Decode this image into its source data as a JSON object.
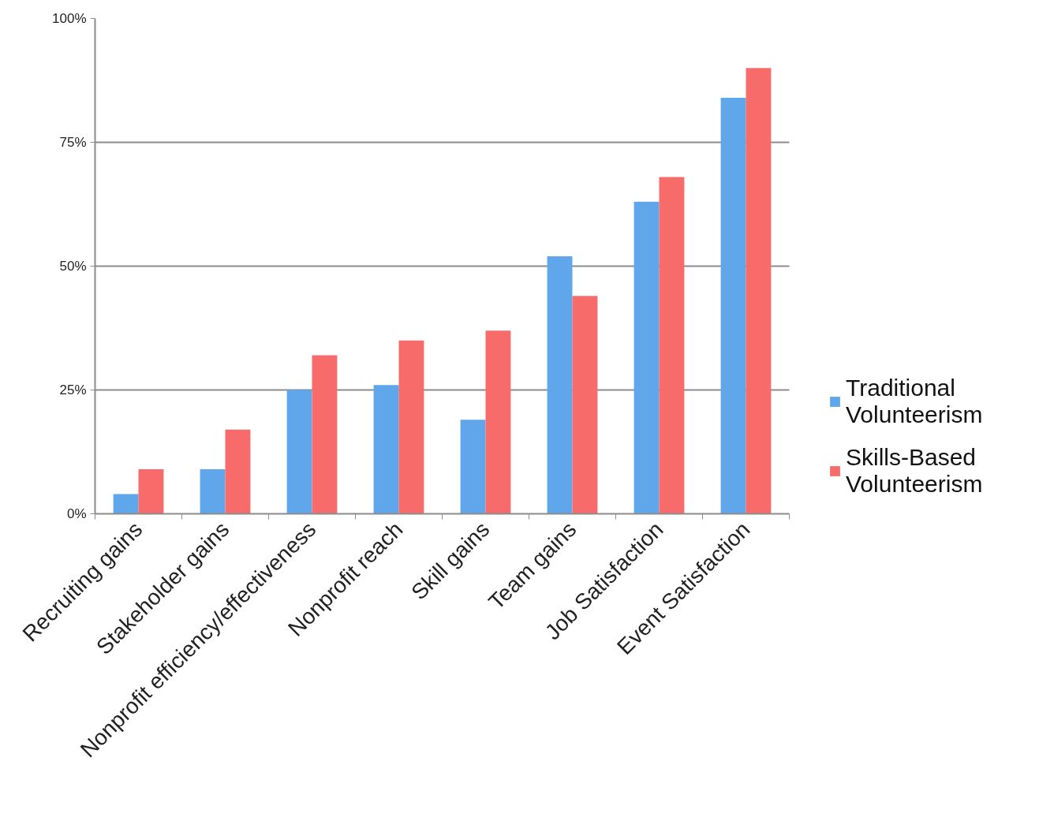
{
  "chart_data": {
    "type": "bar",
    "categories": [
      "Recruiting gains",
      "Stakeholder gains",
      "Nonprofit efficiency/effectiveness",
      "Nonprofit reach",
      "Skill gains",
      "Team gains",
      "Job Satisfaction",
      "Event Satisfaction"
    ],
    "series": [
      {
        "name": "Traditional Volunteerism",
        "color": "#5fa6ea",
        "values": [
          4,
          9,
          25,
          26,
          19,
          52,
          63,
          84
        ]
      },
      {
        "name": "Skills-Based Volunteerism",
        "color": "#f76b6b",
        "values": [
          9,
          17,
          32,
          35,
          37,
          44,
          68,
          90
        ]
      }
    ],
    "ylim": [
      0,
      100
    ],
    "yticks": [
      {
        "value": 0,
        "label": "0%"
      },
      {
        "value": 25,
        "label": "25%"
      },
      {
        "value": 50,
        "label": "50%"
      },
      {
        "value": 75,
        "label": "75%"
      },
      {
        "value": 100,
        "label": "100%"
      }
    ],
    "grid": "y",
    "legend": "right"
  }
}
